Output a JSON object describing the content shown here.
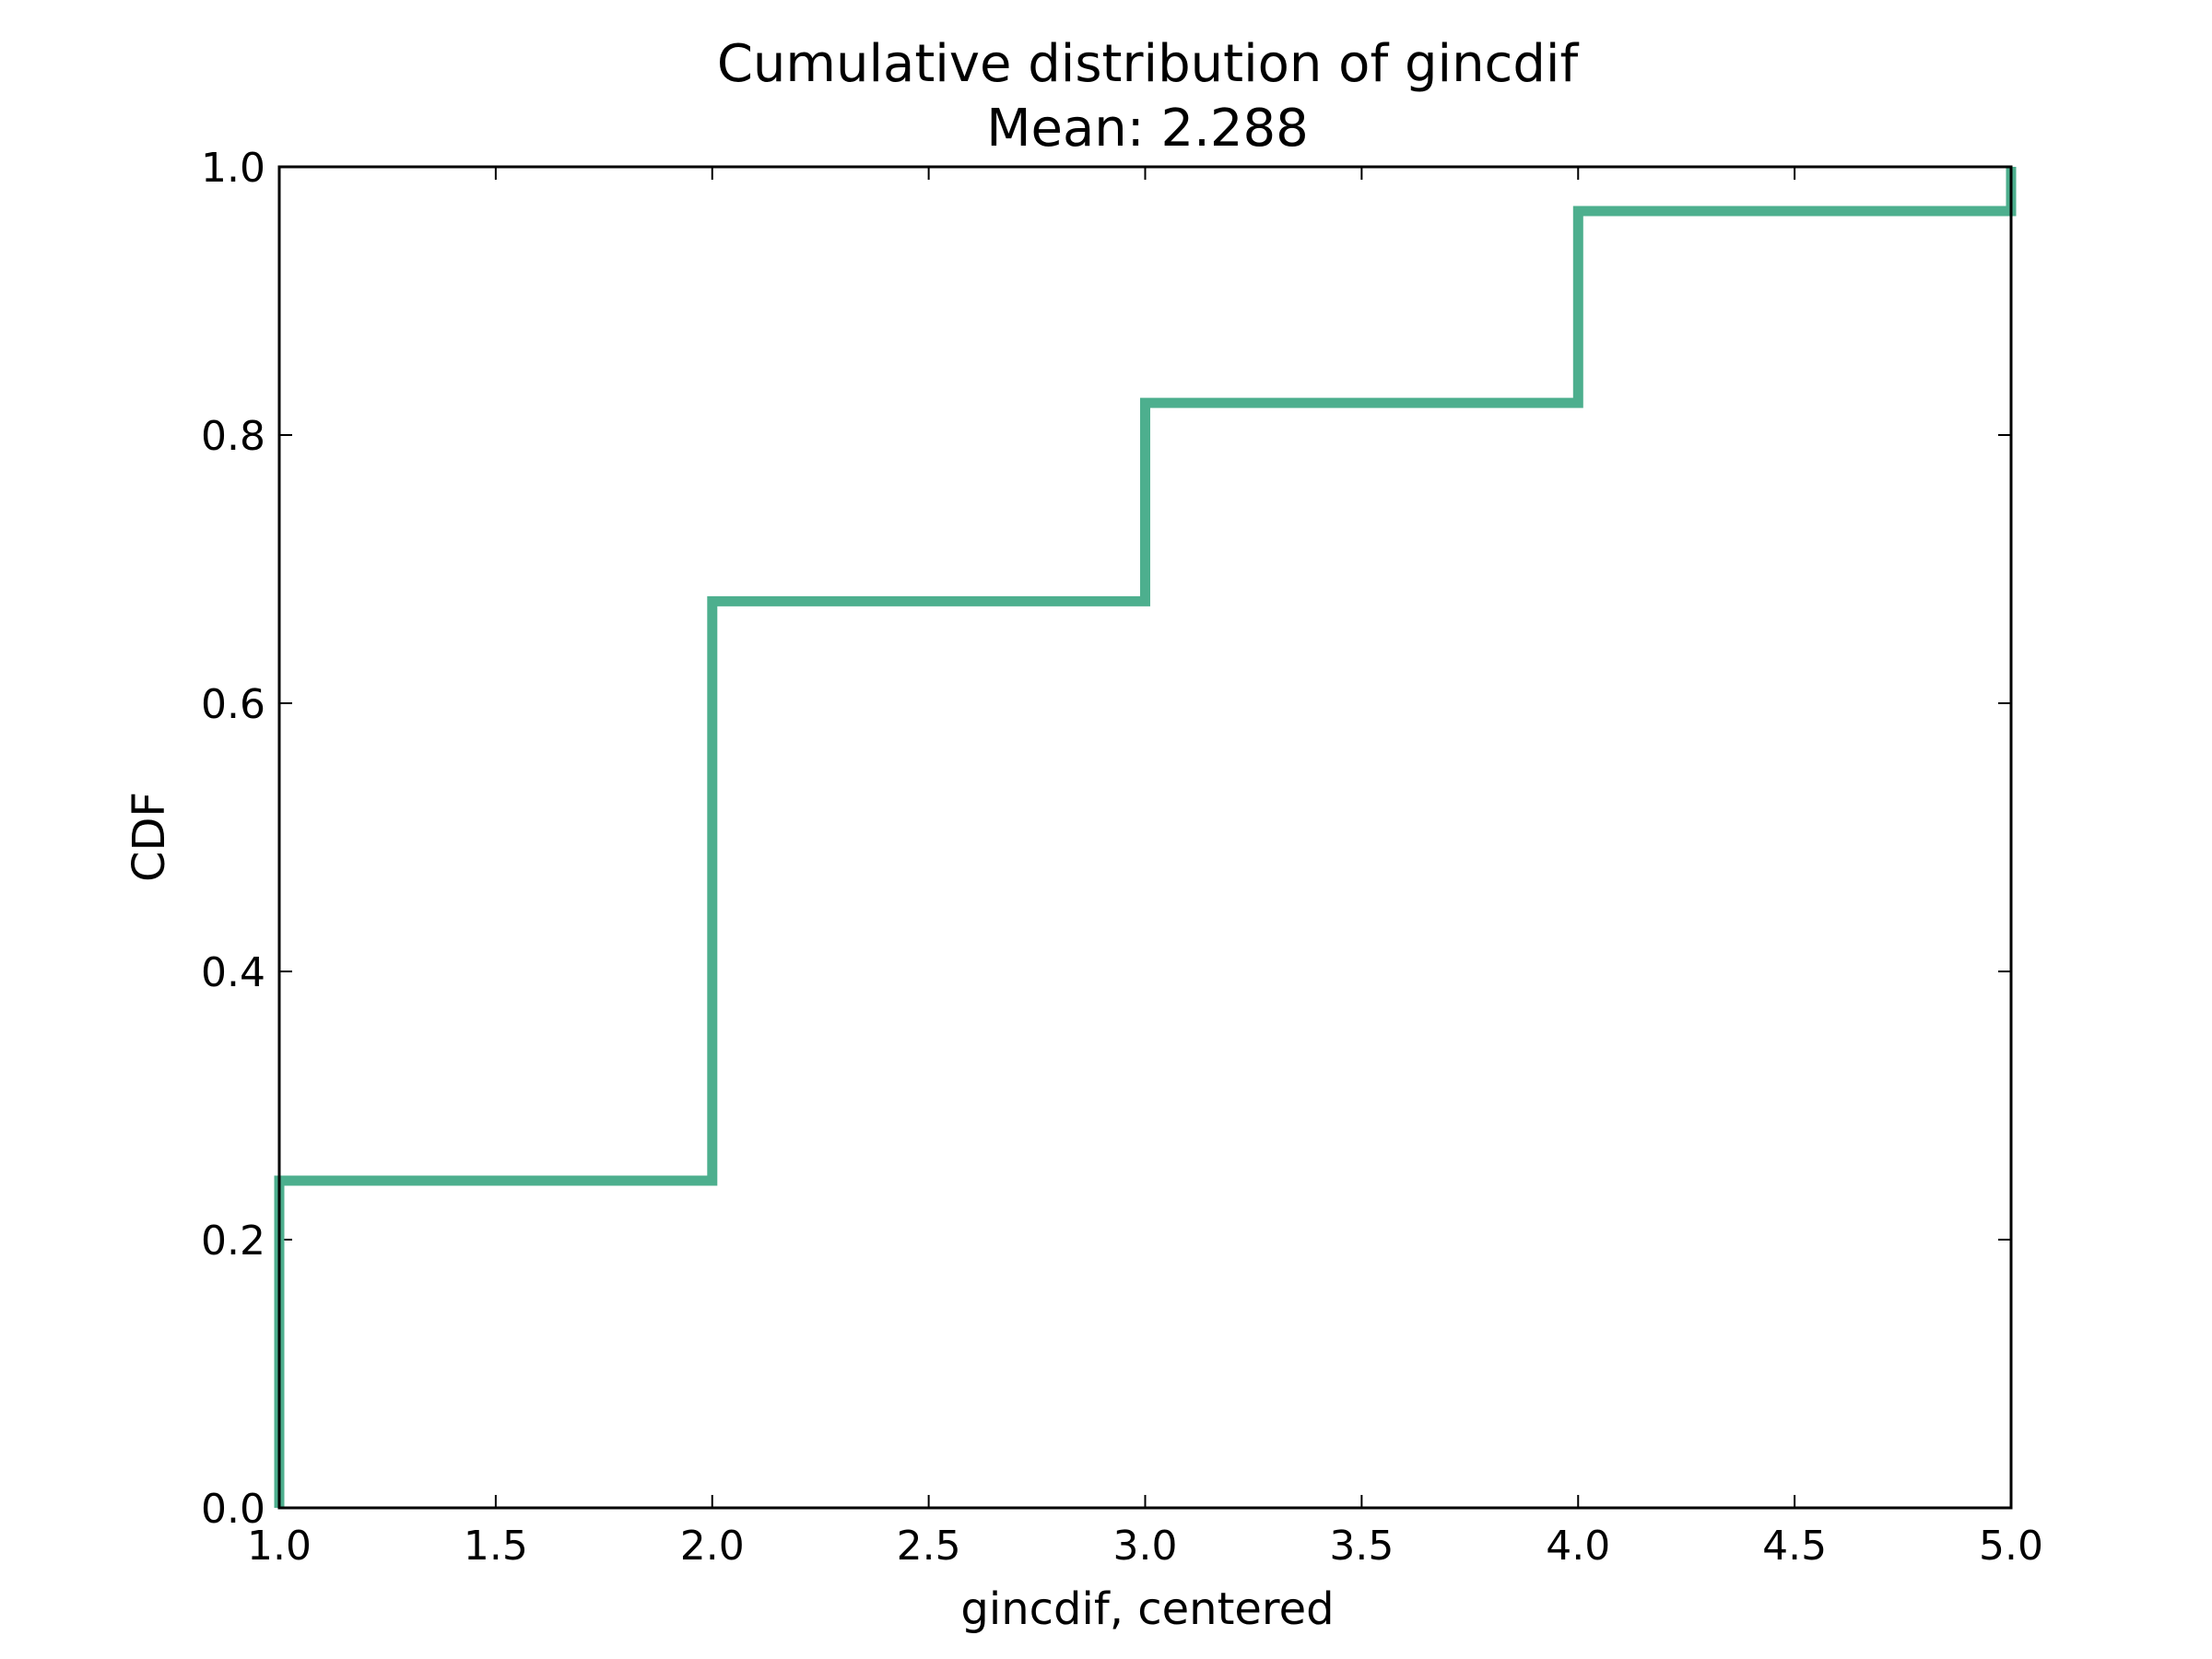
{
  "chart_data": {
    "type": "line",
    "style": "step",
    "title": "Cumulative distribution of gincdif",
    "subtitle": "Mean: 2.288",
    "xlabel": "gincdif, centered",
    "ylabel": "CDF",
    "xlim": [
      1.0,
      5.0
    ],
    "ylim": [
      0.0,
      1.0
    ],
    "x_ticks": [
      "1.0",
      "1.5",
      "2.0",
      "2.5",
      "3.0",
      "3.5",
      "4.0",
      "4.5",
      "5.0"
    ],
    "y_ticks": [
      "0.0",
      "0.2",
      "0.4",
      "0.6",
      "0.8",
      "1.0"
    ],
    "grid": false,
    "line_color": "#4daf8e",
    "series": [
      {
        "x": [
          1.0,
          1.0,
          2.0,
          2.0,
          3.0,
          3.0,
          4.0,
          4.0,
          5.0,
          5.0
        ],
        "y": [
          0.0,
          0.244,
          0.244,
          0.676,
          0.676,
          0.824,
          0.824,
          0.967,
          0.967,
          1.0
        ]
      }
    ]
  }
}
